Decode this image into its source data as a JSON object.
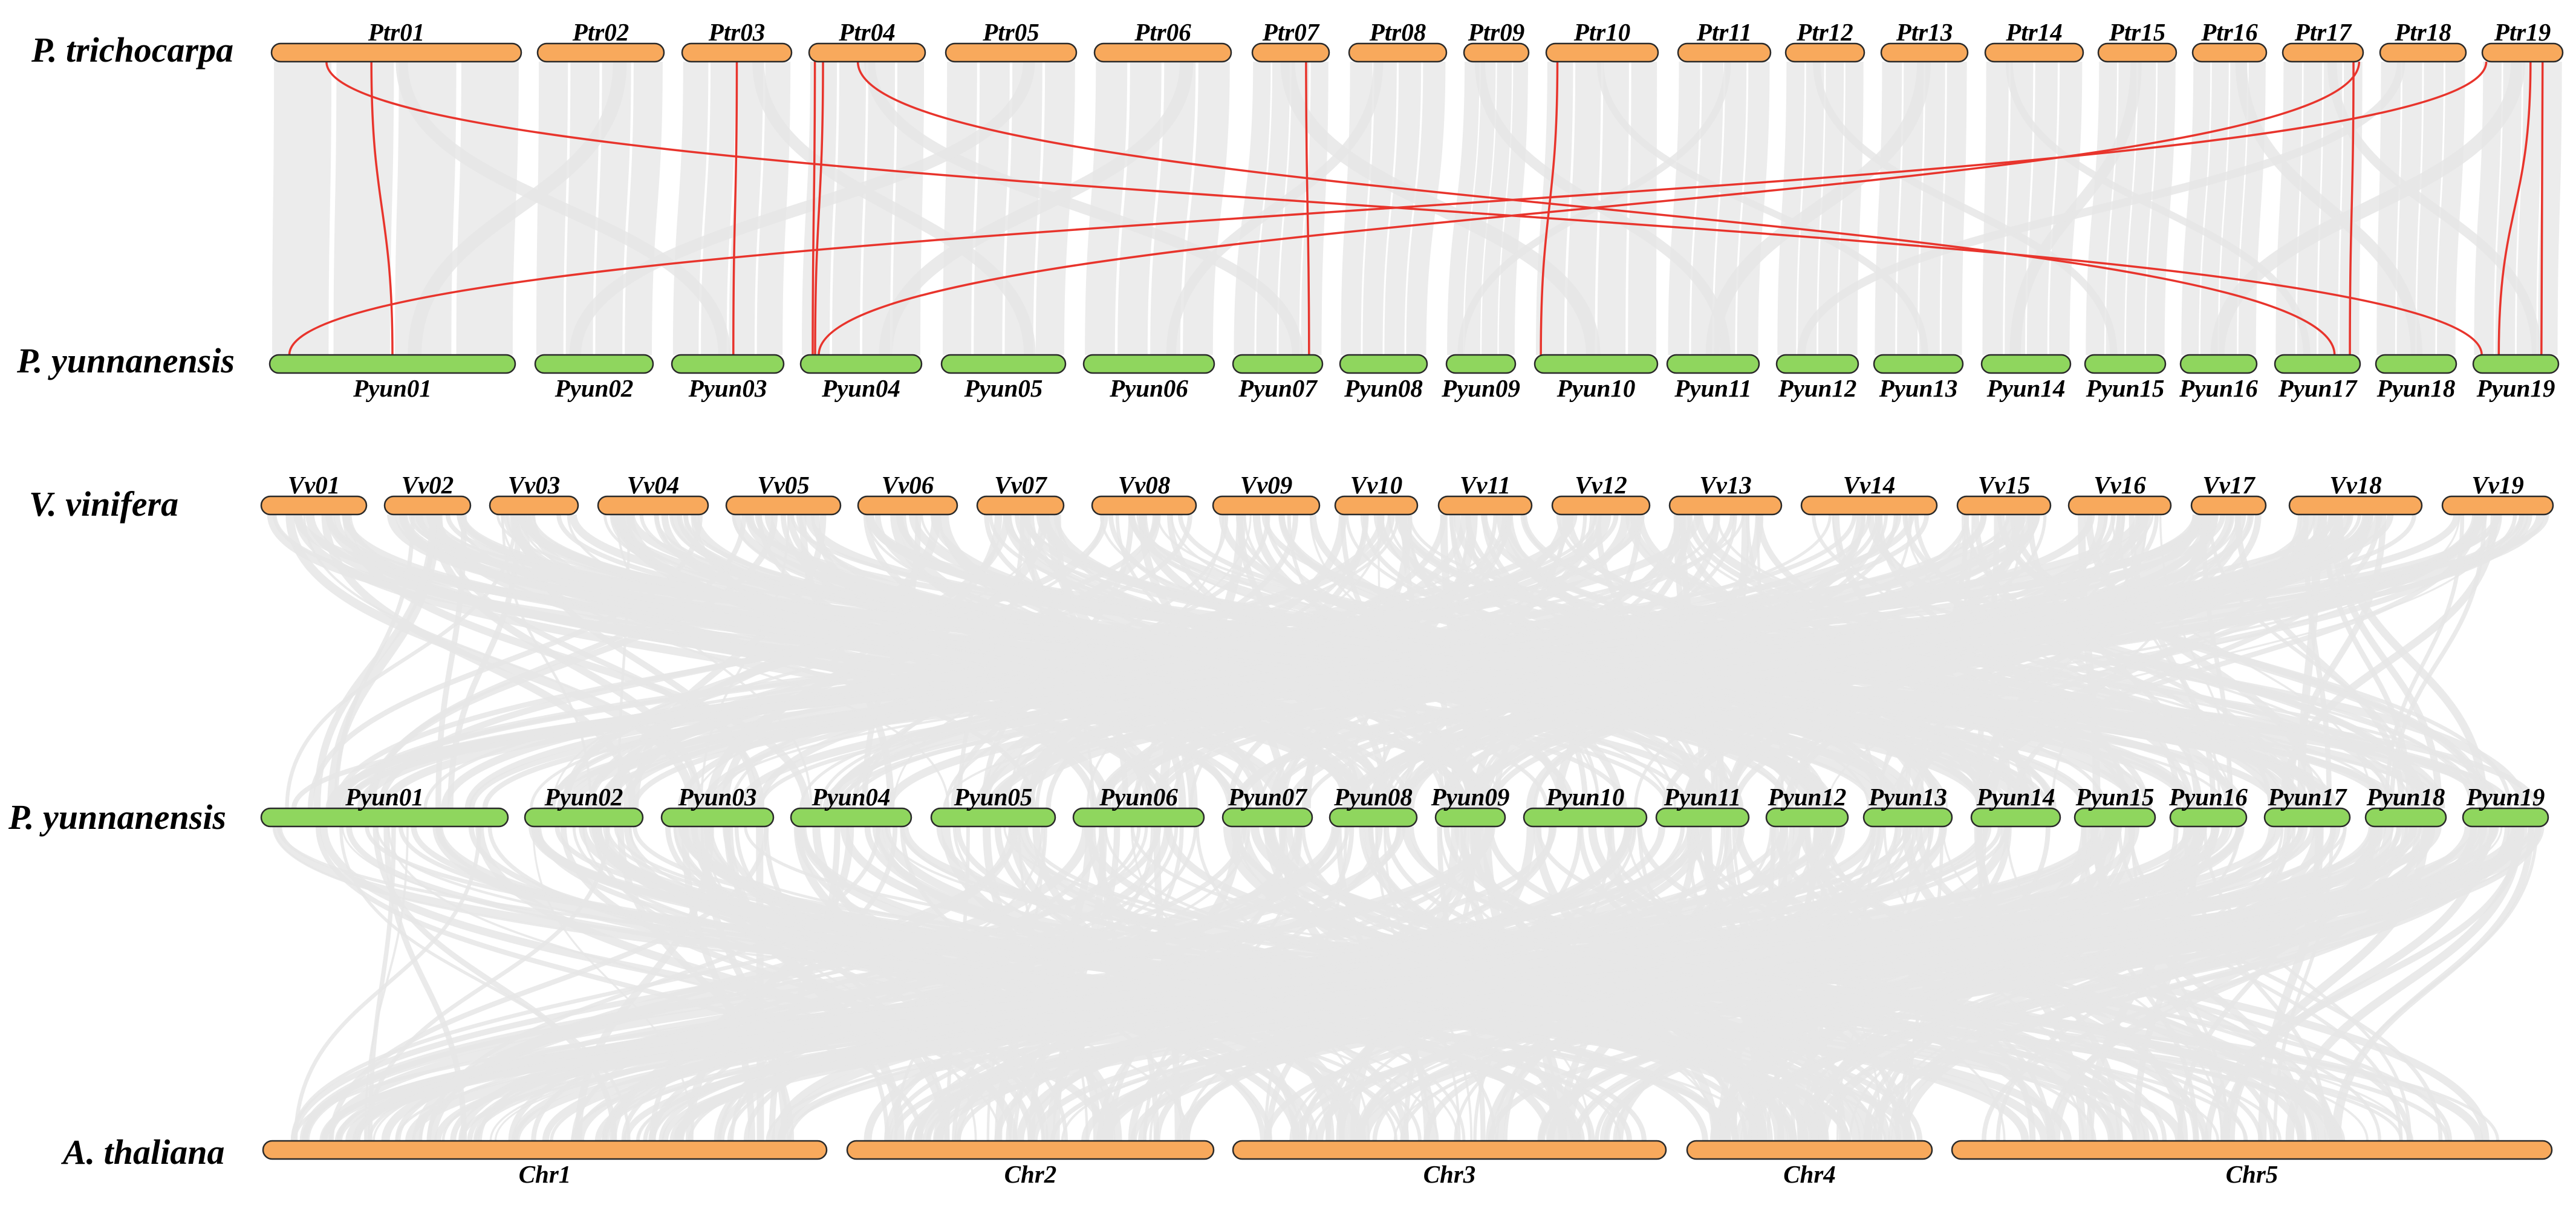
{
  "colors": {
    "orange": "#f8a95c",
    "green": "#8fd65e",
    "outline": "#2a2a2a",
    "synteny": "#e6e6e6",
    "highlight": "#e8342c"
  },
  "panels": [
    {
      "top_species": "P. trichocarpa",
      "bottom_species": "P. yunnanensis",
      "top_chromosomes": [
        "Ptr01",
        "Ptr02",
        "Ptr03",
        "Ptr04",
        "Ptr05",
        "Ptr06",
        "Ptr07",
        "Ptr08",
        "Ptr09",
        "Ptr10",
        "Ptr11",
        "Ptr12",
        "Ptr13",
        "Ptr14",
        "Ptr15",
        "Ptr16",
        "Ptr17",
        "Ptr18",
        "Ptr19"
      ],
      "bottom_chromosomes": [
        "Pyun01",
        "Pyun02",
        "Pyun03",
        "Pyun04",
        "Pyun05",
        "Pyun06",
        "Pyun07",
        "Pyun08",
        "Pyun09",
        "Pyun10",
        "Pyun11",
        "Pyun12",
        "Pyun13",
        "Pyun14",
        "Pyun15",
        "Pyun16",
        "Pyun17",
        "Pyun18",
        "Pyun19"
      ]
    },
    {
      "top_species": "V. vinifera",
      "middle_species": "P. yunnanensis",
      "bottom_species": "A. thaliana",
      "top_chromosomes": [
        "Vv01",
        "Vv02",
        "Vv03",
        "Vv04",
        "Vv05",
        "Vv06",
        "Vv07",
        "Vv08",
        "Vv09",
        "Vv10",
        "Vv11",
        "Vv12",
        "Vv13",
        "Vv14",
        "Vv15",
        "Vv16",
        "Vv17",
        "Vv18",
        "Vv19"
      ],
      "middle_chromosomes": [
        "Pyun01",
        "Pyun02",
        "Pyun03",
        "Pyun04",
        "Pyun05",
        "Pyun06",
        "Pyun07",
        "Pyun08",
        "Pyun09",
        "Pyun10",
        "Pyun11",
        "Pyun12",
        "Pyun13",
        "Pyun14",
        "Pyun15",
        "Pyun16",
        "Pyun17",
        "Pyun18",
        "Pyun19"
      ],
      "bottom_chromosomes": [
        "Chr1",
        "Chr2",
        "Chr3",
        "Chr4",
        "Chr5"
      ]
    }
  ],
  "highlight_links": [
    [
      "Ptr01",
      "Pyun01"
    ],
    [
      "Ptr01",
      "Pyun19"
    ],
    [
      "Ptr03",
      "Pyun03"
    ],
    [
      "Ptr04",
      "Pyun04"
    ],
    [
      "Ptr04",
      "Pyun04"
    ],
    [
      "Ptr04",
      "Pyun17"
    ],
    [
      "Ptr07",
      "Pyun07"
    ],
    [
      "Ptr10",
      "Pyun10"
    ],
    [
      "Ptr17",
      "Pyun17"
    ],
    [
      "Ptr17",
      "Pyun04"
    ],
    [
      "Ptr19",
      "Pyun01"
    ],
    [
      "Ptr19",
      "Pyun19"
    ],
    [
      "Ptr19",
      "Pyun19"
    ]
  ]
}
